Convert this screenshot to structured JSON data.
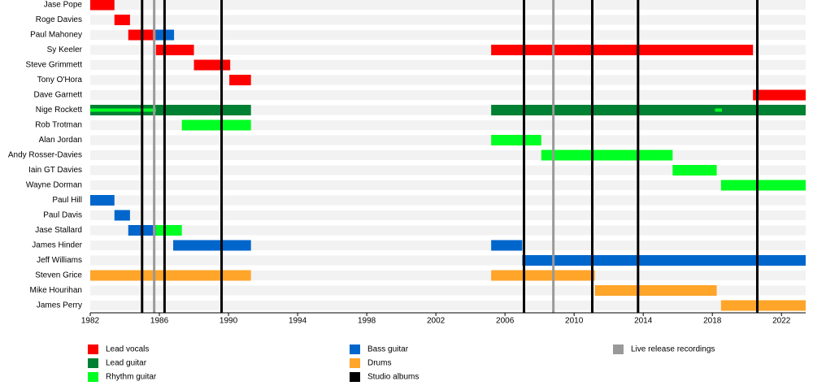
{
  "chart_data": {
    "type": "timeline",
    "xlim": [
      1982,
      2023.4
    ],
    "xticks": [
      1982,
      1986,
      1990,
      1994,
      1998,
      2002,
      2006,
      2010,
      2014,
      2018,
      2022
    ],
    "roles": [
      {
        "name": "Lead vocals",
        "color": "#ff0000"
      },
      {
        "name": "Lead guitar",
        "color": "#008033"
      },
      {
        "name": "Rhythm guitar",
        "color": "#00ff22"
      },
      {
        "name": "Bass guitar",
        "color": "#0066cc"
      },
      {
        "name": "Drums",
        "color": "#ffa52a"
      }
    ],
    "events": [
      {
        "name": "Studio albums",
        "color": "#000000",
        "years": [
          1985.0,
          1986.3,
          1989.6,
          2007.1,
          2011.05,
          2013.7,
          2020.6
        ]
      },
      {
        "name": "Live release recordings",
        "color": "#999999",
        "years": [
          1985.7,
          2008.8
        ]
      }
    ],
    "members": [
      {
        "name": "Jase Pope",
        "bars": [
          {
            "role": "Lead vocals",
            "start": 1982,
            "end": 1983.4
          }
        ]
      },
      {
        "name": "Roge Davies",
        "bars": [
          {
            "role": "Lead vocals",
            "start": 1983.4,
            "end": 1984.3
          }
        ]
      },
      {
        "name": "Paul Mahoney",
        "bars": [
          {
            "role": "Lead vocals",
            "start": 1984.2,
            "end": 1985.8
          },
          {
            "role": "Bass guitar",
            "start": 1985.8,
            "end": 1986.85
          }
        ]
      },
      {
        "name": "Sy Keeler",
        "bars": [
          {
            "role": "Lead vocals",
            "start": 1985.8,
            "end": 1988.0
          },
          {
            "role": "Lead vocals",
            "start": 2005.2,
            "end": 2020.35
          }
        ]
      },
      {
        "name": "Steve Grimmett",
        "bars": [
          {
            "role": "Lead vocals",
            "start": 1988.0,
            "end": 1990.1
          }
        ]
      },
      {
        "name": "Tony O'Hora",
        "bars": [
          {
            "role": "Lead vocals",
            "start": 1990.05,
            "end": 1991.3
          }
        ]
      },
      {
        "name": "Dave Garnett",
        "bars": [
          {
            "role": "Lead vocals",
            "start": 2020.35,
            "end": 2023.4
          }
        ]
      },
      {
        "name": "Nige Rockett",
        "bars": [
          {
            "role": "Lead guitar",
            "start": 1982,
            "end": 1991.3
          },
          {
            "role": "Rhythm guitar",
            "start": 1982,
            "end": 1985.8
          },
          {
            "role": "Lead guitar",
            "start": 2005.2,
            "end": 2023.4
          },
          {
            "role": "Rhythm guitar",
            "start": 2018.15,
            "end": 2018.55
          }
        ]
      },
      {
        "name": "Rob Trotman",
        "bars": [
          {
            "role": "Rhythm guitar",
            "start": 1987.3,
            "end": 1991.3
          }
        ]
      },
      {
        "name": "Alan Jordan",
        "bars": [
          {
            "role": "Rhythm guitar",
            "start": 2005.2,
            "end": 2008.1
          }
        ]
      },
      {
        "name": "Andy Rosser-Davies",
        "bars": [
          {
            "role": "Rhythm guitar",
            "start": 2008.1,
            "end": 2015.7
          }
        ]
      },
      {
        "name": "Iain GT Davies",
        "bars": [
          {
            "role": "Rhythm guitar",
            "start": 2015.7,
            "end": 2018.25
          }
        ]
      },
      {
        "name": "Wayne Dorman",
        "bars": [
          {
            "role": "Rhythm guitar",
            "start": 2018.5,
            "end": 2023.4
          }
        ]
      },
      {
        "name": "Paul Hill",
        "bars": [
          {
            "role": "Bass guitar",
            "start": 1982,
            "end": 1983.4
          }
        ]
      },
      {
        "name": "Paul Davis",
        "bars": [
          {
            "role": "Bass guitar",
            "start": 1983.4,
            "end": 1984.3
          }
        ]
      },
      {
        "name": "Jase Stallard",
        "bars": [
          {
            "role": "Bass guitar",
            "start": 1984.2,
            "end": 1985.8
          },
          {
            "role": "Rhythm guitar",
            "start": 1985.8,
            "end": 1987.3
          }
        ]
      },
      {
        "name": "James Hinder",
        "bars": [
          {
            "role": "Bass guitar",
            "start": 1986.8,
            "end": 1991.3
          },
          {
            "role": "Bass guitar",
            "start": 2005.2,
            "end": 2007.0
          }
        ]
      },
      {
        "name": "Jeff Williams",
        "bars": [
          {
            "role": "Bass guitar",
            "start": 2007.0,
            "end": 2023.4
          }
        ]
      },
      {
        "name": "Steven Grice",
        "bars": [
          {
            "role": "Drums",
            "start": 1982,
            "end": 1991.3
          },
          {
            "role": "Drums",
            "start": 2005.2,
            "end": 2011.2
          }
        ]
      },
      {
        "name": "Mike Hourihan",
        "bars": [
          {
            "role": "Drums",
            "start": 2011.2,
            "end": 2018.25
          }
        ]
      },
      {
        "name": "James Perry",
        "bars": [
          {
            "role": "Drums",
            "start": 2018.5,
            "end": 2023.4
          }
        ]
      }
    ]
  }
}
